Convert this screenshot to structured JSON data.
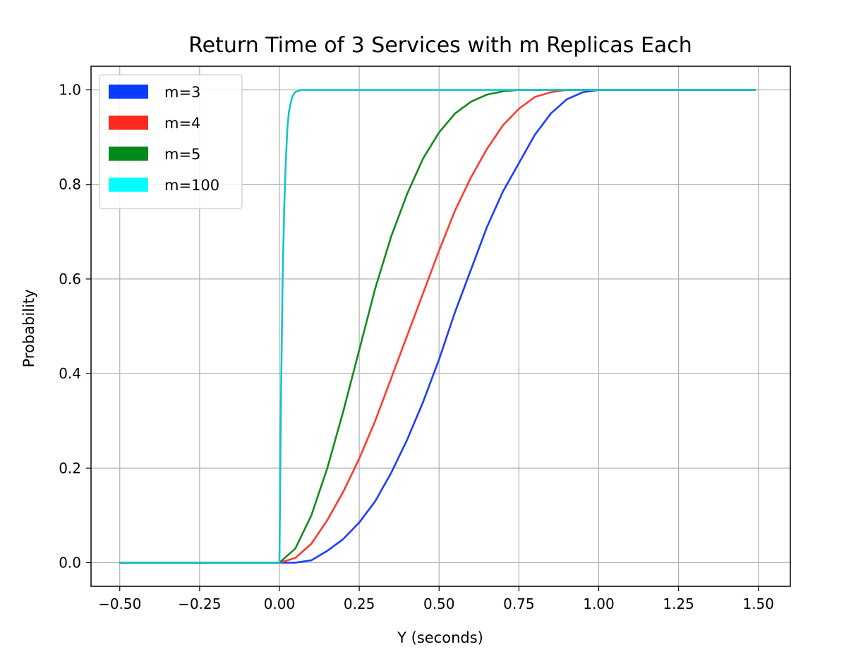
{
  "chart_data": {
    "type": "line",
    "title": "Return Time of 3 Services with m Replicas Each",
    "xlabel": "Y (seconds)",
    "ylabel": "Probability",
    "xlim": [
      -0.59,
      1.6
    ],
    "ylim": [
      -0.05,
      1.05
    ],
    "x_ticks": [
      -0.5,
      -0.25,
      0.0,
      0.25,
      0.5,
      0.75,
      1.0,
      1.25,
      1.5
    ],
    "x_tick_labels": [
      "−0.50",
      "−0.25",
      "0.00",
      "0.25",
      "0.50",
      "0.75",
      "1.00",
      "1.25",
      "1.50"
    ],
    "y_ticks": [
      0.0,
      0.2,
      0.4,
      0.6,
      0.8,
      1.0
    ],
    "y_tick_labels": [
      "0.0",
      "0.2",
      "0.4",
      "0.6",
      "0.8",
      "1.0"
    ],
    "grid": true,
    "legend_position": "top-left",
    "series": [
      {
        "name": "m=3",
        "color": "#1f3cff",
        "legend_color": "#0a3cff",
        "x": [
          -0.5,
          0.0,
          0.05,
          0.1,
          0.15,
          0.2,
          0.25,
          0.3,
          0.35,
          0.4,
          0.45,
          0.5,
          0.55,
          0.6,
          0.65,
          0.7,
          0.75,
          0.8,
          0.85,
          0.9,
          0.95,
          1.0,
          1.49
        ],
        "y": [
          0.0,
          0.0,
          0.0,
          0.005,
          0.025,
          0.05,
          0.085,
          0.13,
          0.19,
          0.26,
          0.34,
          0.43,
          0.53,
          0.62,
          0.71,
          0.785,
          0.845,
          0.905,
          0.95,
          0.98,
          0.995,
          1.0,
          1.0
        ]
      },
      {
        "name": "m=4",
        "color": "#ff3b2f",
        "legend_color": "#ff2a1f",
        "x": [
          -0.5,
          0.0,
          0.05,
          0.1,
          0.15,
          0.2,
          0.25,
          0.3,
          0.35,
          0.4,
          0.45,
          0.5,
          0.55,
          0.6,
          0.65,
          0.7,
          0.75,
          0.8,
          0.85,
          0.9,
          1.0,
          1.49
        ],
        "y": [
          0.0,
          0.0,
          0.01,
          0.04,
          0.09,
          0.15,
          0.22,
          0.3,
          0.39,
          0.48,
          0.57,
          0.66,
          0.745,
          0.815,
          0.875,
          0.925,
          0.96,
          0.985,
          0.995,
          1.0,
          1.0,
          1.0
        ]
      },
      {
        "name": "m=5",
        "color": "#138a1f",
        "legend_color": "#038a1a",
        "x": [
          -0.5,
          0.0,
          0.05,
          0.1,
          0.15,
          0.2,
          0.25,
          0.3,
          0.35,
          0.4,
          0.45,
          0.5,
          0.55,
          0.6,
          0.65,
          0.7,
          0.75,
          0.8,
          1.49
        ],
        "y": [
          0.0,
          0.0,
          0.03,
          0.1,
          0.2,
          0.32,
          0.45,
          0.58,
          0.69,
          0.78,
          0.855,
          0.91,
          0.95,
          0.975,
          0.99,
          0.997,
          1.0,
          1.0,
          1.0
        ]
      },
      {
        "name": "m=100",
        "color": "#14c4c8",
        "legend_color": "#00ffff",
        "x": [
          -0.5,
          0.0,
          0.005,
          0.01,
          0.015,
          0.02,
          0.025,
          0.03,
          0.04,
          0.05,
          0.07,
          0.1,
          1.49
        ],
        "y": [
          0.0,
          0.0,
          0.35,
          0.6,
          0.75,
          0.85,
          0.92,
          0.955,
          0.985,
          0.996,
          1.0,
          1.0,
          1.0
        ]
      }
    ]
  }
}
